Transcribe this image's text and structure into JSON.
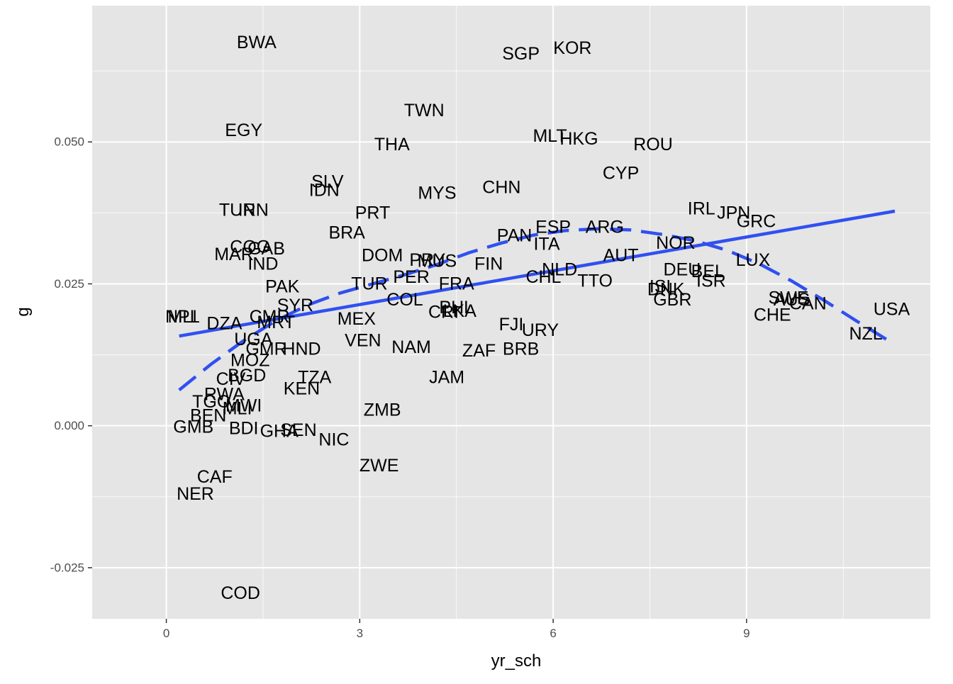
{
  "chart_data": {
    "type": "scatter",
    "xlabel": "yr_sch",
    "ylabel": "g",
    "xlim": [
      -1.15,
      11.85
    ],
    "ylim": [
      -0.034,
      0.074
    ],
    "x_ticks": [
      0,
      3,
      6,
      9
    ],
    "x_tick_labels": [
      "0",
      "3",
      "6",
      "9"
    ],
    "y_ticks": [
      -0.025,
      0.0,
      0.025,
      0.05
    ],
    "y_tick_labels": [
      "-0.025",
      "0.000",
      "0.025",
      "0.050"
    ],
    "grid": true,
    "background": "#e5e5e5",
    "grid_color": "#ffffff",
    "line_color": "#3050f0",
    "points": [
      {
        "label": "BWA",
        "x": 1.4,
        "y": 0.0675
      },
      {
        "label": "SGP",
        "x": 5.5,
        "y": 0.0655
      },
      {
        "label": "KOR",
        "x": 6.3,
        "y": 0.0665
      },
      {
        "label": "TWN",
        "x": 4.0,
        "y": 0.0555
      },
      {
        "label": "EGY",
        "x": 1.2,
        "y": 0.052
      },
      {
        "label": "THA",
        "x": 3.5,
        "y": 0.0495
      },
      {
        "label": "MLT",
        "x": 5.95,
        "y": 0.051
      },
      {
        "label": "HKG",
        "x": 6.4,
        "y": 0.0505
      },
      {
        "label": "ROU",
        "x": 7.55,
        "y": 0.0495
      },
      {
        "label": "CYP",
        "x": 7.05,
        "y": 0.0445
      },
      {
        "label": "SLV",
        "x": 2.5,
        "y": 0.043
      },
      {
        "label": "IDN",
        "x": 2.45,
        "y": 0.0415
      },
      {
        "label": "MYS",
        "x": 4.2,
        "y": 0.041
      },
      {
        "label": "CHN",
        "x": 5.2,
        "y": 0.042
      },
      {
        "label": "TUN",
        "x": 1.1,
        "y": 0.038
      },
      {
        "label": "IRN",
        "x": 1.35,
        "y": 0.038
      },
      {
        "label": "PRT",
        "x": 3.2,
        "y": 0.0375
      },
      {
        "label": "IRL",
        "x": 8.3,
        "y": 0.0382
      },
      {
        "label": "JPN",
        "x": 8.8,
        "y": 0.0375
      },
      {
        "label": "GRC",
        "x": 9.15,
        "y": 0.036
      },
      {
        "label": "BRA",
        "x": 2.8,
        "y": 0.034
      },
      {
        "label": "PAN",
        "x": 5.4,
        "y": 0.0335
      },
      {
        "label": "ESP",
        "x": 6.0,
        "y": 0.035
      },
      {
        "label": "ARG",
        "x": 6.8,
        "y": 0.035
      },
      {
        "label": "ITA",
        "x": 5.9,
        "y": 0.032
      },
      {
        "label": "NOR",
        "x": 7.9,
        "y": 0.0322
      },
      {
        "label": "COG",
        "x": 1.3,
        "y": 0.0315
      },
      {
        "label": "GAB",
        "x": 1.55,
        "y": 0.0312
      },
      {
        "label": "MAR",
        "x": 1.05,
        "y": 0.0302
      },
      {
        "label": "IND",
        "x": 1.5,
        "y": 0.0285
      },
      {
        "label": "DOM",
        "x": 3.35,
        "y": 0.03
      },
      {
        "label": "PRY",
        "x": 4.05,
        "y": 0.0292
      },
      {
        "label": "MUS",
        "x": 4.2,
        "y": 0.029
      },
      {
        "label": "FIN",
        "x": 5.0,
        "y": 0.0285
      },
      {
        "label": "AUT",
        "x": 7.05,
        "y": 0.03
      },
      {
        "label": "LUX",
        "x": 9.1,
        "y": 0.0292
      },
      {
        "label": "DEU",
        "x": 8.0,
        "y": 0.0275
      },
      {
        "label": "BEL",
        "x": 8.4,
        "y": 0.0272
      },
      {
        "label": "NLD",
        "x": 6.1,
        "y": 0.0275
      },
      {
        "label": "CHL",
        "x": 5.85,
        "y": 0.0262
      },
      {
        "label": "TTO",
        "x": 6.65,
        "y": 0.0255
      },
      {
        "label": "ISR",
        "x": 8.45,
        "y": 0.0255
      },
      {
        "label": "PAK",
        "x": 1.8,
        "y": 0.0245
      },
      {
        "label": "TUR",
        "x": 3.15,
        "y": 0.025
      },
      {
        "label": "PER",
        "x": 3.8,
        "y": 0.0262
      },
      {
        "label": "FRA",
        "x": 4.5,
        "y": 0.025
      },
      {
        "label": "ISL",
        "x": 7.7,
        "y": 0.0245
      },
      {
        "label": "DNK",
        "x": 7.75,
        "y": 0.024
      },
      {
        "label": "GBR",
        "x": 7.85,
        "y": 0.0222
      },
      {
        "label": "SWE",
        "x": 9.65,
        "y": 0.0225
      },
      {
        "label": "AUS",
        "x": 9.7,
        "y": 0.0222
      },
      {
        "label": "CAN",
        "x": 9.95,
        "y": 0.0215
      },
      {
        "label": "USA",
        "x": 11.25,
        "y": 0.0205
      },
      {
        "label": "CHE",
        "x": 9.4,
        "y": 0.0195
      },
      {
        "label": "NZL",
        "x": 10.85,
        "y": 0.0162
      },
      {
        "label": "SYR",
        "x": 2.0,
        "y": 0.0212
      },
      {
        "label": "COL",
        "x": 3.7,
        "y": 0.0222
      },
      {
        "label": "CRI",
        "x": 4.3,
        "y": 0.02
      },
      {
        "label": "PHL",
        "x": 4.5,
        "y": 0.0208
      },
      {
        "label": "LKA",
        "x": 4.55,
        "y": 0.0202
      },
      {
        "label": "NPL",
        "x": 0.25,
        "y": 0.0192
      },
      {
        "label": "MLI",
        "x": 0.25,
        "y": 0.0192
      },
      {
        "label": "DZA",
        "x": 0.9,
        "y": 0.018
      },
      {
        "label": "CMR",
        "x": 1.6,
        "y": 0.0192
      },
      {
        "label": "MRT",
        "x": 1.7,
        "y": 0.0182
      },
      {
        "label": "MEX",
        "x": 2.95,
        "y": 0.0188
      },
      {
        "label": "FJI",
        "x": 5.35,
        "y": 0.0178
      },
      {
        "label": "URY",
        "x": 5.8,
        "y": 0.0168
      },
      {
        "label": "UGA",
        "x": 1.35,
        "y": 0.0152
      },
      {
        "label": "VEN",
        "x": 3.05,
        "y": 0.015
      },
      {
        "label": "NAM",
        "x": 3.8,
        "y": 0.0138
      },
      {
        "label": "ZAF",
        "x": 4.85,
        "y": 0.0132
      },
      {
        "label": "BRB",
        "x": 5.5,
        "y": 0.0135
      },
      {
        "label": "GMR",
        "x": 1.55,
        "y": 0.0135
      },
      {
        "label": "HND",
        "x": 2.1,
        "y": 0.0135
      },
      {
        "label": "MOZ",
        "x": 1.3,
        "y": 0.0115
      },
      {
        "label": "BGD",
        "x": 1.25,
        "y": 0.0088
      },
      {
        "label": "CIV",
        "x": 1.0,
        "y": 0.0082
      },
      {
        "label": "TZA",
        "x": 2.3,
        "y": 0.0085
      },
      {
        "label": "JAM",
        "x": 4.35,
        "y": 0.0085
      },
      {
        "label": "KEN",
        "x": 2.1,
        "y": 0.0065
      },
      {
        "label": "RWA",
        "x": 0.9,
        "y": 0.0055
      },
      {
        "label": "TGO",
        "x": 0.7,
        "y": 0.0042
      },
      {
        "label": "MWI",
        "x": 1.2,
        "y": 0.0035
      },
      {
        "label": "MLI",
        "x": 1.1,
        "y": 0.003
      },
      {
        "label": "ZMB",
        "x": 3.35,
        "y": 0.0028
      },
      {
        "label": "BEN",
        "x": 0.65,
        "y": 0.0018
      },
      {
        "label": "GMB",
        "x": 0.42,
        "y": -0.0002
      },
      {
        "label": "BDI",
        "x": 1.2,
        "y": -0.0005
      },
      {
        "label": "GHA",
        "x": 1.75,
        "y": -0.001
      },
      {
        "label": "SEN",
        "x": 2.05,
        "y": -0.0008
      },
      {
        "label": "NIC",
        "x": 2.6,
        "y": -0.0025
      },
      {
        "label": "ZWE",
        "x": 3.3,
        "y": -0.007
      },
      {
        "label": "CAF",
        "x": 0.75,
        "y": -0.009
      },
      {
        "label": "NER",
        "x": 0.45,
        "y": -0.012
      },
      {
        "label": "COD",
        "x": 1.15,
        "y": -0.0295
      }
    ],
    "series": [
      {
        "style": "solid",
        "x": [
          0.2,
          11.3
        ],
        "y": [
          0.0158,
          0.0378
        ]
      },
      {
        "style": "dashed",
        "x": [
          0.2,
          0.7,
          1.2,
          1.7,
          2.2,
          2.7,
          3.2,
          3.7,
          4.2,
          4.7,
          5.2,
          5.7,
          6.2,
          6.7,
          7.2,
          7.7,
          8.2,
          8.7,
          9.2,
          9.7,
          10.2,
          10.7,
          11.2
        ],
        "y": [
          0.0063,
          0.0109,
          0.015,
          0.0185,
          0.0213,
          0.0234,
          0.025,
          0.0266,
          0.0284,
          0.0305,
          0.0322,
          0.0336,
          0.0344,
          0.0347,
          0.0345,
          0.0337,
          0.0326,
          0.0309,
          0.0285,
          0.0255,
          0.0221,
          0.0185,
          0.015
        ]
      }
    ]
  }
}
